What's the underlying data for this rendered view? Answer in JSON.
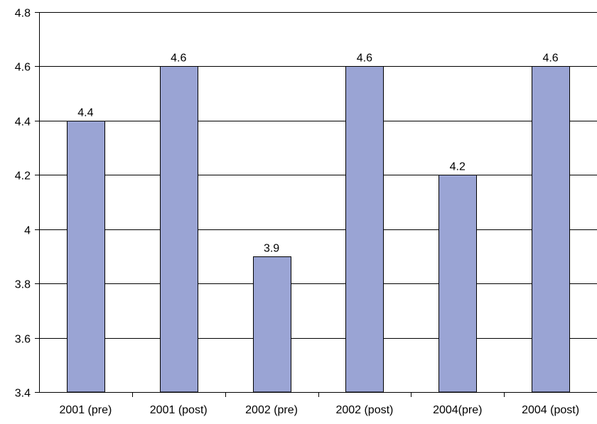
{
  "chart_data": {
    "type": "bar",
    "categories": [
      "2001 (pre)",
      "2001 (post)",
      "2002 (pre)",
      "2002 (post)",
      "2004(pre)",
      "2004 (post)"
    ],
    "values": [
      4.4,
      4.6,
      3.9,
      4.6,
      4.2,
      4.6
    ],
    "value_labels": [
      "4.4",
      "4.6",
      "3.9",
      "4.6",
      "4.2",
      "4.6"
    ],
    "yticks": [
      "3.4",
      "3.6",
      "3.8",
      "4",
      "4.2",
      "4.4",
      "4.6",
      "4.8"
    ],
    "ylim": [
      3.4,
      4.8
    ],
    "title": "",
    "xlabel": "",
    "ylabel": "",
    "grid": true,
    "bar_color": "#9aa4d4",
    "bar_stroke": "#000000"
  }
}
